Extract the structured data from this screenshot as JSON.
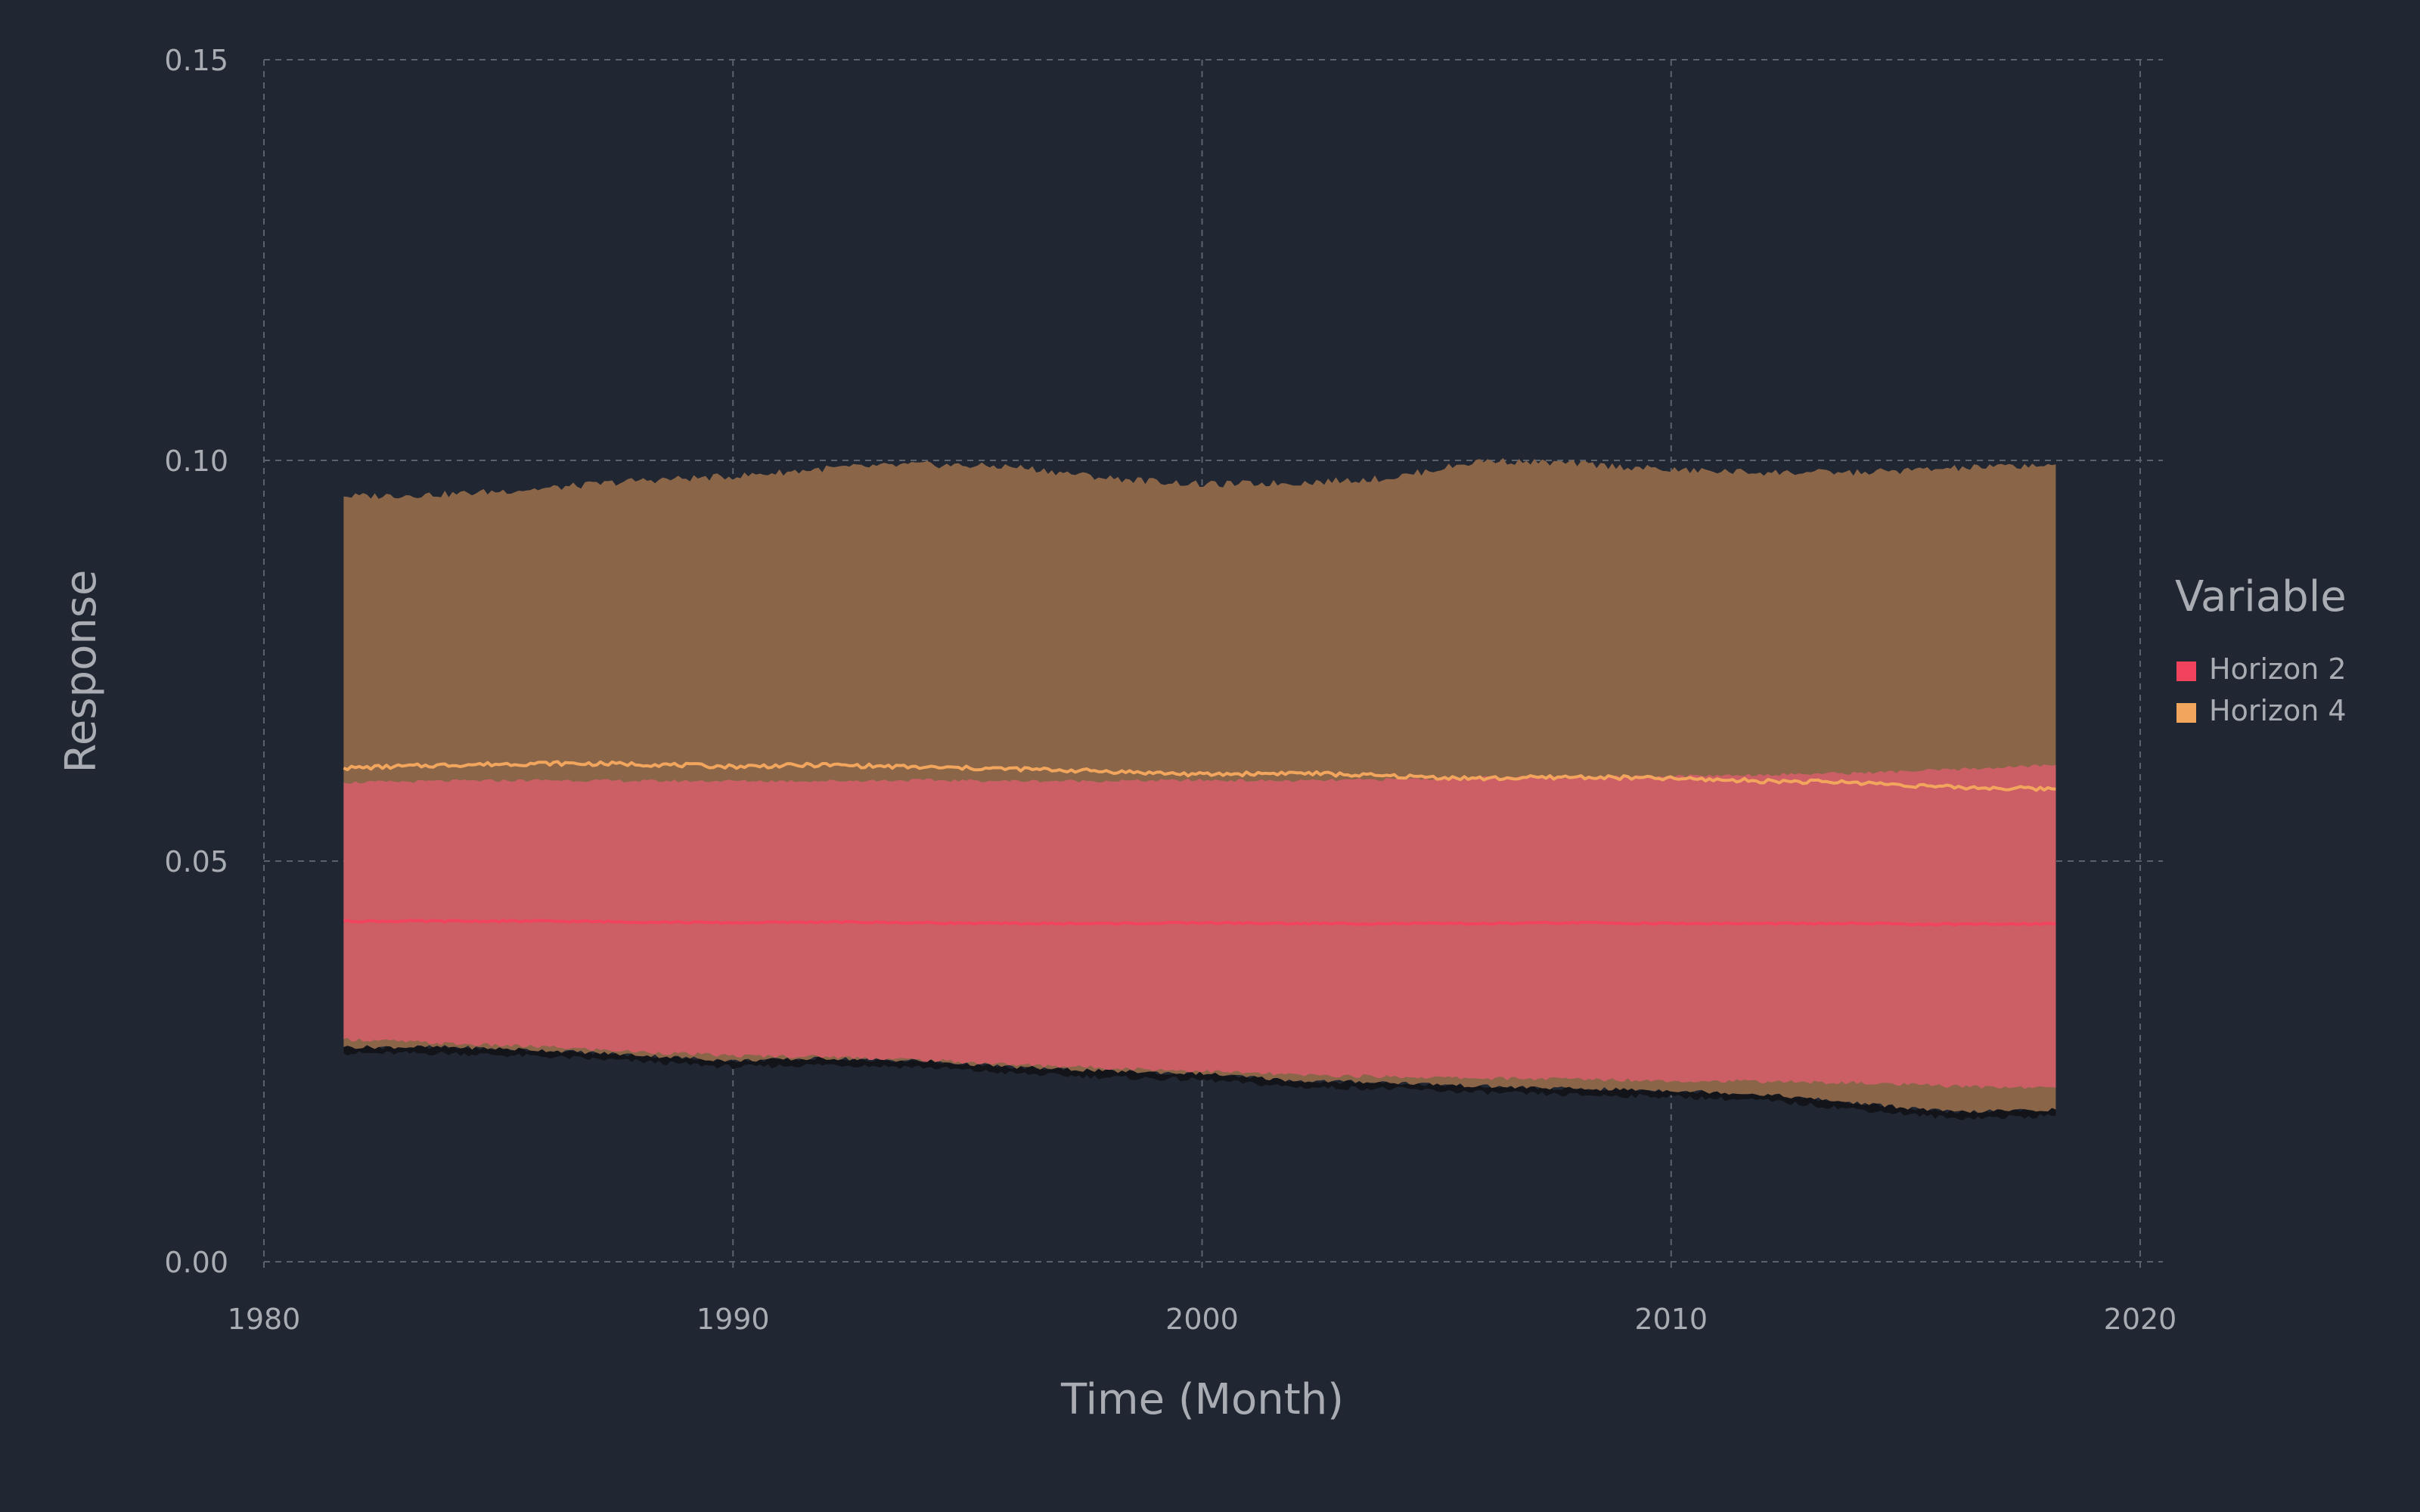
{
  "chart_data": {
    "type": "area",
    "xlabel": "Time (Month)",
    "ylabel": "Response",
    "xlim": [
      1980,
      2020
    ],
    "ylim": [
      0,
      0.15
    ],
    "x_ticks": [
      {
        "value": 1980,
        "label": "1980"
      },
      {
        "value": 1990,
        "label": "1990"
      },
      {
        "value": 2000,
        "label": "2000"
      },
      {
        "value": 2010,
        "label": "2010"
      },
      {
        "value": 2020,
        "label": "2020"
      }
    ],
    "y_ticks": [
      {
        "value": 0.0,
        "label": "0.00"
      },
      {
        "value": 0.05,
        "label": "0.05"
      },
      {
        "value": 0.1,
        "label": "0.10"
      },
      {
        "value": 0.15,
        "label": "0.15"
      }
    ],
    "grid": true,
    "legend": {
      "title": "Variable",
      "placement": "right"
    },
    "x": [
      1981.7,
      1984,
      1986,
      1988,
      1990,
      1992,
      1994,
      1996,
      1998,
      2000,
      2002,
      2004,
      2006,
      2008,
      2010,
      2012,
      2014,
      2016,
      2018.2
    ],
    "series": [
      {
        "name": "Horizon 2",
        "color": "#f2435e",
        "band_color": "#cc5f66",
        "median": [
          0.0425,
          0.0425,
          0.0425,
          0.0424,
          0.0423,
          0.0424,
          0.0423,
          0.0422,
          0.0422,
          0.0423,
          0.0422,
          0.0422,
          0.0422,
          0.0423,
          0.0422,
          0.0422,
          0.0422,
          0.0421,
          0.0422
        ],
        "lower": [
          0.0278,
          0.0272,
          0.0268,
          0.0262,
          0.0257,
          0.0256,
          0.0252,
          0.0246,
          0.0242,
          0.0238,
          0.0233,
          0.0231,
          0.0229,
          0.0228,
          0.0226,
          0.0225,
          0.0223,
          0.0219,
          0.0217
        ],
        "upper": [
          0.0598,
          0.06,
          0.0601,
          0.06,
          0.06,
          0.06,
          0.0601,
          0.06,
          0.06,
          0.0601,
          0.06,
          0.0602,
          0.0604,
          0.0605,
          0.0606,
          0.0608,
          0.061,
          0.0614,
          0.062
        ]
      },
      {
        "name": "Horizon 4",
        "color": "#f2a55d",
        "band_color": "#8a6548",
        "median": [
          0.0616,
          0.062,
          0.0622,
          0.0621,
          0.0618,
          0.062,
          0.0617,
          0.0615,
          0.0612,
          0.0608,
          0.061,
          0.0606,
          0.0603,
          0.0605,
          0.0603,
          0.06,
          0.0598,
          0.0592,
          0.059
        ],
        "lower": [
          0.0268,
          0.0268,
          0.0264,
          0.0258,
          0.0251,
          0.0254,
          0.0251,
          0.0243,
          0.0238,
          0.0235,
          0.0226,
          0.0224,
          0.0219,
          0.0216,
          0.0214,
          0.0209,
          0.0198,
          0.0187,
          0.019
        ],
        "upper": [
          0.0955,
          0.0958,
          0.0965,
          0.0975,
          0.098,
          0.099,
          0.0995,
          0.0992,
          0.0978,
          0.097,
          0.0972,
          0.0978,
          0.1,
          0.0996,
          0.0988,
          0.0985,
          0.0985,
          0.099,
          0.0995
        ]
      }
    ]
  }
}
